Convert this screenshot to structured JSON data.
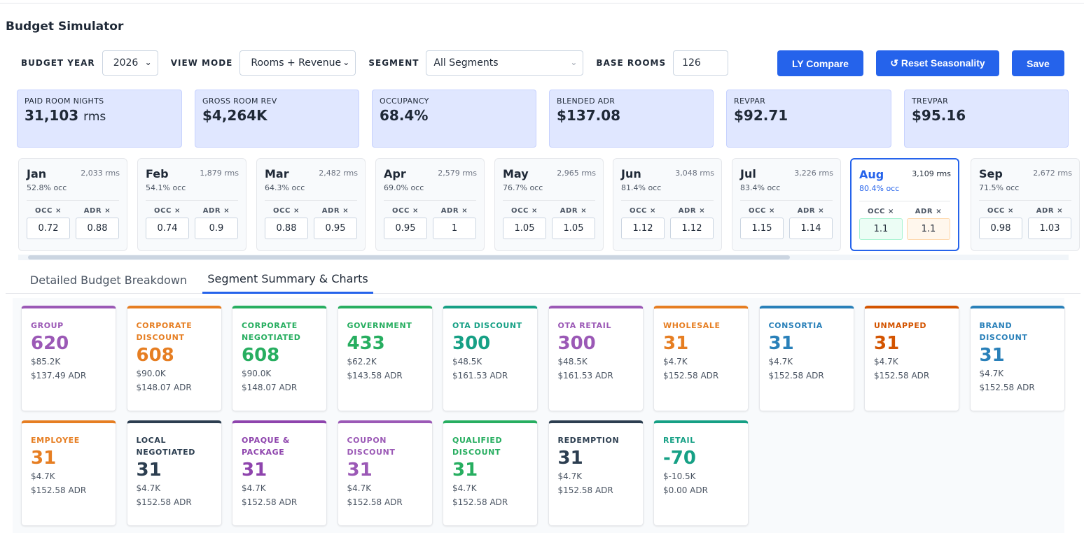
{
  "title": "Budget Simulator",
  "controls": {
    "budget_year_label": "BUDGET YEAR",
    "budget_year_value": "2026",
    "view_mode_label": "VIEW MODE",
    "view_mode_value": "Rooms + Revenue",
    "segment_label": "SEGMENT",
    "segment_value": "All Segments",
    "base_rooms_label": "BASE ROOMS",
    "base_rooms_value": "126"
  },
  "buttons": {
    "ly_compare": "LY Compare",
    "reset_seasonality": "↺ Reset Seasonality",
    "save": "Save"
  },
  "kpis": [
    {
      "label": "PAID ROOM NIGHTS",
      "value": "31,103",
      "unit": "rms"
    },
    {
      "label": "GROSS ROOM REV",
      "value": "$4,264K",
      "unit": ""
    },
    {
      "label": "OCCUPANCY",
      "value": "68.4%",
      "unit": ""
    },
    {
      "label": "BLENDED ADR",
      "value": "$137.08",
      "unit": ""
    },
    {
      "label": "REVPAR",
      "value": "$92.71",
      "unit": ""
    },
    {
      "label": "TREVPAR",
      "value": "$95.16",
      "unit": ""
    }
  ],
  "factor_labels": {
    "occ": "OCC ×",
    "adr": "ADR ×"
  },
  "months": [
    {
      "name": "Jan",
      "rms": "2,033 rms",
      "occ": "52.8% occ",
      "occ_factor": "0.72",
      "adr_factor": "0.88"
    },
    {
      "name": "Feb",
      "rms": "1,879 rms",
      "occ": "54.1% occ",
      "occ_factor": "0.74",
      "adr_factor": "0.9"
    },
    {
      "name": "Mar",
      "rms": "2,482 rms",
      "occ": "64.3% occ",
      "occ_factor": "0.88",
      "adr_factor": "0.95"
    },
    {
      "name": "Apr",
      "rms": "2,579 rms",
      "occ": "69.0% occ",
      "occ_factor": "0.95",
      "adr_factor": "1"
    },
    {
      "name": "May",
      "rms": "2,965 rms",
      "occ": "76.7% occ",
      "occ_factor": "1.05",
      "adr_factor": "1.05"
    },
    {
      "name": "Jun",
      "rms": "3,048 rms",
      "occ": "81.4% occ",
      "occ_factor": "1.12",
      "adr_factor": "1.12"
    },
    {
      "name": "Jul",
      "rms": "3,226 rms",
      "occ": "83.4% occ",
      "occ_factor": "1.15",
      "adr_factor": "1.14"
    },
    {
      "name": "Aug",
      "rms": "3,109 rms",
      "occ": "80.4% occ",
      "occ_factor": "1.1",
      "adr_factor": "1.1"
    },
    {
      "name": "Sep",
      "rms": "2,672 rms",
      "occ": "71.5% occ",
      "occ_factor": "0.98",
      "adr_factor": "1.03"
    }
  ],
  "tabs": [
    "Detailed Budget Breakdown",
    "Segment Summary & Charts"
  ],
  "segments": [
    {
      "name": "GROUP",
      "value": "620",
      "rev": "$85.2K",
      "adr": "$137.49 ADR",
      "color": "#9b59b6"
    },
    {
      "name": "CORPORATE DISCOUNT",
      "value": "608",
      "rev": "$90.0K",
      "adr": "$148.07 ADR",
      "color": "#e67e22"
    },
    {
      "name": "CORPORATE NEGOTIATED",
      "value": "608",
      "rev": "$90.0K",
      "adr": "$148.07 ADR",
      "color": "#27ae60"
    },
    {
      "name": "GOVERNMENT",
      "value": "433",
      "rev": "$62.2K",
      "adr": "$143.58 ADR",
      "color": "#27ae60"
    },
    {
      "name": "OTA DISCOUNT",
      "value": "300",
      "rev": "$48.5K",
      "adr": "$161.53 ADR",
      "color": "#16a085"
    },
    {
      "name": "OTA RETAIL",
      "value": "300",
      "rev": "$48.5K",
      "adr": "$161.53 ADR",
      "color": "#9b59b6"
    },
    {
      "name": "WHOLESALE",
      "value": "31",
      "rev": "$4.7K",
      "adr": "$152.58 ADR",
      "color": "#e67e22"
    },
    {
      "name": "CONSORTIA",
      "value": "31",
      "rev": "$4.7K",
      "adr": "$152.58 ADR",
      "color": "#2980b9"
    },
    {
      "name": "UNMAPPED",
      "value": "31",
      "rev": "$4.7K",
      "adr": "$152.58 ADR",
      "color": "#d35400"
    },
    {
      "name": "BRAND DISCOUNT",
      "value": "31",
      "rev": "$4.7K",
      "adr": "$152.58 ADR",
      "color": "#2980b9"
    },
    {
      "name": "EMPLOYEE",
      "value": "31",
      "rev": "$4.7K",
      "adr": "$152.58 ADR",
      "color": "#e67e22"
    },
    {
      "name": "LOCAL NEGOTIATED",
      "value": "31",
      "rev": "$4.7K",
      "adr": "$152.58 ADR",
      "color": "#2c3e50"
    },
    {
      "name": "OPAQUE & PACKAGE",
      "value": "31",
      "rev": "$4.7K",
      "adr": "$152.58 ADR",
      "color": "#8e44ad"
    },
    {
      "name": "COUPON DISCOUNT",
      "value": "31",
      "rev": "$4.7K",
      "adr": "$152.58 ADR",
      "color": "#9b59b6"
    },
    {
      "name": "QUALIFIED DISCOUNT",
      "value": "31",
      "rev": "$4.7K",
      "adr": "$152.58 ADR",
      "color": "#27ae60"
    },
    {
      "name": "REDEMPTION",
      "value": "31",
      "rev": "$4.7K",
      "adr": "$152.58 ADR",
      "color": "#2c3e50"
    },
    {
      "name": "RETAIL",
      "value": "-70",
      "rev": "$-10.5K",
      "adr": "$0.00 ADR",
      "color": "#16a085"
    }
  ]
}
